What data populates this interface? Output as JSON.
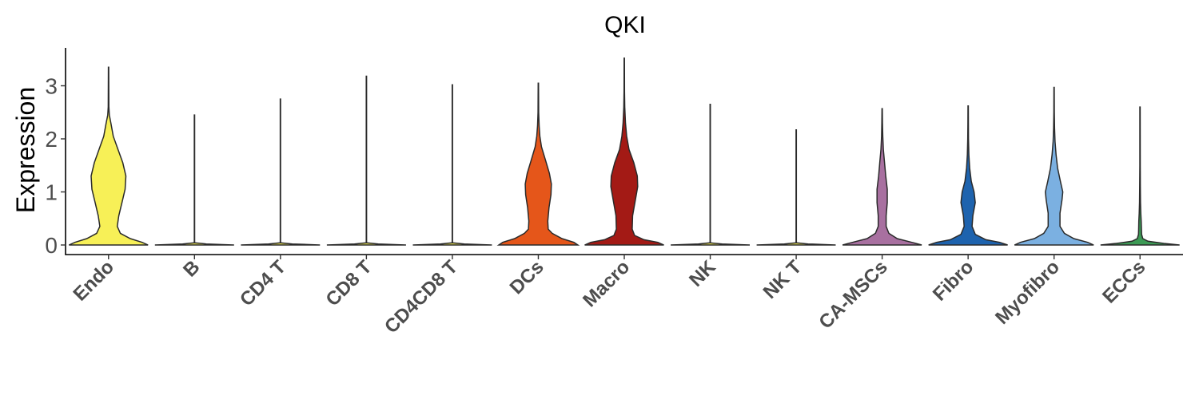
{
  "chart_data": {
    "type": "violin",
    "title": "QKI",
    "xlabel": "",
    "ylabel": "Expression",
    "ylim": [
      -0.15,
      3.7
    ],
    "yticks": [
      0,
      1,
      2,
      3
    ],
    "grid": false,
    "legend": "none",
    "categories": [
      "Endo",
      "B",
      "CD4 T",
      "CD8 T",
      "CD4CD8 T",
      "DCs",
      "Macro",
      "NK",
      "NK T",
      "CA-MSCs",
      "Fibro",
      "Myofibro",
      "ECCs"
    ],
    "series": [
      {
        "category": "Endo",
        "color": "#F7F057",
        "max": 3.35,
        "profile": [
          [
            0,
            1.0
          ],
          [
            0.05,
            0.85
          ],
          [
            0.12,
            0.55
          ],
          [
            0.22,
            0.3
          ],
          [
            0.35,
            0.22
          ],
          [
            0.55,
            0.26
          ],
          [
            0.8,
            0.34
          ],
          [
            1.05,
            0.42
          ],
          [
            1.3,
            0.44
          ],
          [
            1.55,
            0.36
          ],
          [
            1.8,
            0.24
          ],
          [
            2.05,
            0.12
          ],
          [
            2.3,
            0.06
          ],
          [
            2.45,
            0.02
          ],
          [
            2.6,
            0.008
          ],
          [
            3.35,
            0.004
          ]
        ]
      },
      {
        "category": "B",
        "color": "#F7F057",
        "max": 2.45,
        "profile": [
          [
            0,
            1.0
          ],
          [
            0.02,
            0.3
          ],
          [
            0.04,
            0.004
          ],
          [
            2.45,
            0.004
          ]
        ]
      },
      {
        "category": "CD4 T",
        "color": "#F7F057",
        "max": 2.75,
        "profile": [
          [
            0,
            1.0
          ],
          [
            0.02,
            0.3
          ],
          [
            0.04,
            0.004
          ],
          [
            2.75,
            0.004
          ]
        ]
      },
      {
        "category": "CD8 T",
        "color": "#F7F057",
        "max": 3.18,
        "profile": [
          [
            0,
            1.0
          ],
          [
            0.02,
            0.3
          ],
          [
            0.04,
            0.004
          ],
          [
            3.18,
            0.004
          ]
        ]
      },
      {
        "category": "CD4CD8 T",
        "color": "#F7F057",
        "max": 3.02,
        "profile": [
          [
            0,
            1.0
          ],
          [
            0.02,
            0.3
          ],
          [
            0.04,
            0.004
          ],
          [
            3.02,
            0.004
          ]
        ]
      },
      {
        "category": "DCs",
        "color": "#E5561A",
        "max": 3.05,
        "profile": [
          [
            0,
            1.0
          ],
          [
            0.05,
            0.9
          ],
          [
            0.12,
            0.6
          ],
          [
            0.22,
            0.35
          ],
          [
            0.3,
            0.25
          ],
          [
            0.45,
            0.24
          ],
          [
            0.7,
            0.27
          ],
          [
            0.95,
            0.32
          ],
          [
            1.15,
            0.33
          ],
          [
            1.35,
            0.28
          ],
          [
            1.6,
            0.18
          ],
          [
            1.85,
            0.08
          ],
          [
            2.05,
            0.04
          ],
          [
            2.25,
            0.02
          ],
          [
            2.5,
            0.008
          ],
          [
            3.05,
            0.004
          ]
        ]
      },
      {
        "category": "Macro",
        "color": "#A31A15",
        "max": 3.52,
        "profile": [
          [
            0,
            1.0
          ],
          [
            0.05,
            0.85
          ],
          [
            0.1,
            0.5
          ],
          [
            0.18,
            0.26
          ],
          [
            0.3,
            0.2
          ],
          [
            0.55,
            0.21
          ],
          [
            0.85,
            0.28
          ],
          [
            1.1,
            0.34
          ],
          [
            1.3,
            0.33
          ],
          [
            1.55,
            0.24
          ],
          [
            1.8,
            0.12
          ],
          [
            2.05,
            0.06
          ],
          [
            2.3,
            0.03
          ],
          [
            2.6,
            0.012
          ],
          [
            2.9,
            0.006
          ],
          [
            3.52,
            0.004
          ]
        ]
      },
      {
        "category": "NK",
        "color": "#F7F057",
        "max": 2.65,
        "profile": [
          [
            0,
            1.0
          ],
          [
            0.02,
            0.3
          ],
          [
            0.04,
            0.004
          ],
          [
            2.65,
            0.004
          ]
        ]
      },
      {
        "category": "NK T",
        "color": "#F7F057",
        "max": 2.17,
        "profile": [
          [
            0,
            1.0
          ],
          [
            0.02,
            0.3
          ],
          [
            0.04,
            0.004
          ],
          [
            2.17,
            0.004
          ]
        ]
      },
      {
        "category": "CA-MSCs",
        "color": "#A870A0",
        "max": 2.57,
        "profile": [
          [
            0,
            1.0
          ],
          [
            0.05,
            0.75
          ],
          [
            0.12,
            0.38
          ],
          [
            0.22,
            0.17
          ],
          [
            0.35,
            0.1
          ],
          [
            0.55,
            0.1
          ],
          [
            0.8,
            0.13
          ],
          [
            1.05,
            0.13
          ],
          [
            1.3,
            0.09
          ],
          [
            1.55,
            0.06
          ],
          [
            1.8,
            0.03
          ],
          [
            2.05,
            0.015
          ],
          [
            2.3,
            0.008
          ],
          [
            2.57,
            0.004
          ]
        ]
      },
      {
        "category": "Fibro",
        "color": "#1E63AE",
        "max": 2.62,
        "profile": [
          [
            0,
            1.0
          ],
          [
            0.05,
            0.8
          ],
          [
            0.1,
            0.45
          ],
          [
            0.2,
            0.18
          ],
          [
            0.35,
            0.1
          ],
          [
            0.55,
            0.12
          ],
          [
            0.8,
            0.18
          ],
          [
            1.0,
            0.15
          ],
          [
            1.2,
            0.08
          ],
          [
            1.45,
            0.04
          ],
          [
            1.7,
            0.02
          ],
          [
            2.0,
            0.01
          ],
          [
            2.3,
            0.006
          ],
          [
            2.62,
            0.004
          ]
        ]
      },
      {
        "category": "Myofibro",
        "color": "#7BB0E1",
        "max": 2.97,
        "profile": [
          [
            0,
            1.0
          ],
          [
            0.05,
            0.85
          ],
          [
            0.12,
            0.5
          ],
          [
            0.22,
            0.26
          ],
          [
            0.35,
            0.15
          ],
          [
            0.6,
            0.15
          ],
          [
            0.85,
            0.2
          ],
          [
            1.0,
            0.22
          ],
          [
            1.2,
            0.16
          ],
          [
            1.45,
            0.09
          ],
          [
            1.7,
            0.05
          ],
          [
            1.95,
            0.025
          ],
          [
            2.2,
            0.012
          ],
          [
            2.5,
            0.006
          ],
          [
            2.97,
            0.004
          ]
        ]
      },
      {
        "category": "ECCs",
        "color": "#3C9A55",
        "max": 2.6,
        "profile": [
          [
            0,
            1.0
          ],
          [
            0.03,
            0.6
          ],
          [
            0.07,
            0.2
          ],
          [
            0.12,
            0.07
          ],
          [
            0.2,
            0.04
          ],
          [
            0.3,
            0.035
          ],
          [
            0.45,
            0.03
          ],
          [
            0.6,
            0.02
          ],
          [
            0.8,
            0.012
          ],
          [
            1.1,
            0.008
          ],
          [
            1.5,
            0.005
          ],
          [
            2.6,
            0.004
          ]
        ]
      }
    ]
  }
}
